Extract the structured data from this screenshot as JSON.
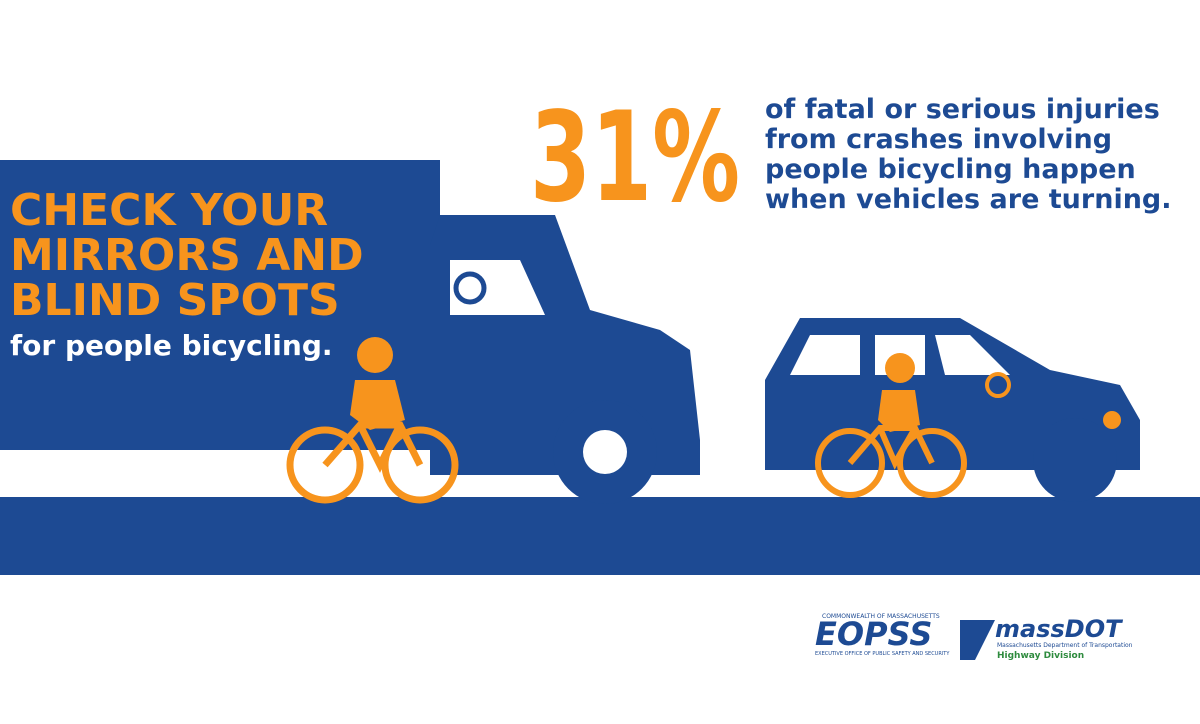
{
  "stat": {
    "figure": "31%",
    "lines": [
      "of fatal or serious injuries",
      "from crashes involving",
      "people bicycling happen",
      "when vehicles are turning."
    ]
  },
  "headline": {
    "lines": [
      "CHECK YOUR",
      "MIRRORS AND",
      "BLIND SPOTS"
    ],
    "sub": "for people bicycling."
  },
  "logos": {
    "eopss": {
      "top": "COMMONWEALTH OF MASSACHUSETTS",
      "name": "EOPSS",
      "bottom": "EXECUTIVE OFFICE OF PUBLIC SAFETY AND SECURITY"
    },
    "massdot": {
      "name": "massDOT",
      "line1": "Massachusetts Department of Transportation",
      "line2": "Highway Division"
    }
  }
}
